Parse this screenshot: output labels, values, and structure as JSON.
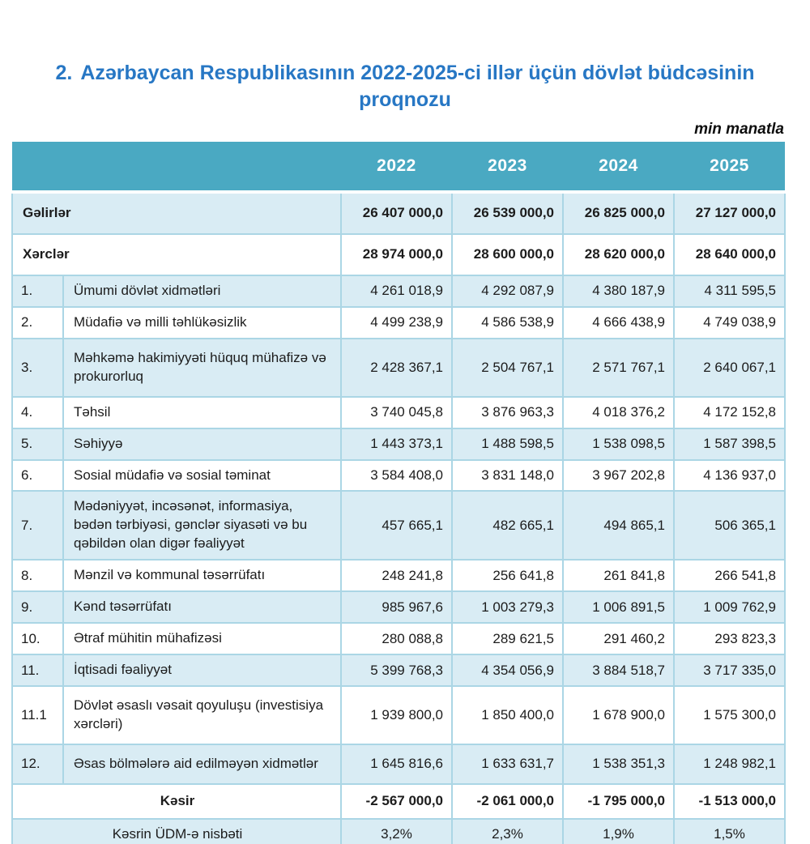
{
  "page": {
    "title_number": "2.",
    "title_text": "Azərbaycan Respublikasının 2022-2025-ci illər üçün dövlət büdcəsinin proqnozu",
    "unit_note": "min manatla"
  },
  "colors": {
    "title_blue": "#2777c4",
    "header_bg": "#4aa9c2",
    "header_text": "#ffffff",
    "shaded_row_bg": "#d9ecf4",
    "cell_border": "#abd6e5",
    "body_text": "#1c1c1c"
  },
  "table": {
    "year_headers": [
      "2022",
      "2023",
      "2024",
      "2025"
    ],
    "rows": [
      {
        "type": "summary",
        "label": "Gəlirlər",
        "values": [
          "26 407 000,0",
          "26 539 000,0",
          "26 825 000,0",
          "27 127 000,0"
        ]
      },
      {
        "type": "summary",
        "label": "Xərclər",
        "values": [
          "28 974 000,0",
          "28 600 000,0",
          "28 620 000,0",
          "28 640 000,0"
        ]
      },
      {
        "type": "item",
        "num": "1.",
        "label": "Ümumi dövlət xidmətləri",
        "values": [
          "4 261 018,9",
          "4 292 087,9",
          "4 380 187,9",
          "4 311 595,5"
        ]
      },
      {
        "type": "item",
        "num": "2.",
        "label": "Müdafiə və milli təhlükəsizlik",
        "values": [
          "4 499 238,9",
          "4 586 538,9",
          "4 666 438,9",
          "4 749 038,9"
        ]
      },
      {
        "type": "item",
        "num": "3.",
        "label": "Məhkəmə hakimiyyəti hüquq mühafizə və prokurorluq",
        "values": [
          "2 428 367,1",
          "2 504 767,1",
          "2 571 767,1",
          "2 640 067,1"
        ]
      },
      {
        "type": "item",
        "num": "4.",
        "label": "Təhsil",
        "values": [
          "3 740 045,8",
          "3 876 963,3",
          "4 018 376,2",
          "4 172 152,8"
        ]
      },
      {
        "type": "item",
        "num": "5.",
        "label": "Səhiyyə",
        "values": [
          "1 443 373,1",
          "1 488 598,5",
          "1 538 098,5",
          "1 587 398,5"
        ]
      },
      {
        "type": "item",
        "num": "6.",
        "label": "Sosial müdafiə və sosial təminat",
        "values": [
          "3 584 408,0",
          "3 831 148,0",
          "3 967 202,8",
          "4 136 937,0"
        ]
      },
      {
        "type": "item",
        "num": "7.",
        "label": "Mədəniyyət, incəsənət, informasiya, bədən tərbiyəsi, gənclər siyasəti və bu qəbildən olan digər fəaliyyət",
        "values": [
          "457 665,1",
          "482 665,1",
          "494 865,1",
          "506 365,1"
        ]
      },
      {
        "type": "item",
        "num": "8.",
        "label": "Mənzil və kommunal təsərrüfatı",
        "values": [
          "248 241,8",
          "256 641,8",
          "261 841,8",
          "266 541,8"
        ]
      },
      {
        "type": "item",
        "num": "9.",
        "label": "Kənd təsərrüfatı",
        "values": [
          "985 967,6",
          "1 003 279,3",
          "1 006 891,5",
          "1 009 762,9"
        ]
      },
      {
        "type": "item",
        "num": "10.",
        "label": "Ətraf mühitin mühafizəsi",
        "values": [
          "280 088,8",
          "289 621,5",
          "291 460,2",
          "293 823,3"
        ]
      },
      {
        "type": "item",
        "num": "11.",
        "label": "İqtisadi fəaliyyət",
        "values": [
          "5 399 768,3",
          "4 354 056,9",
          "3 884 518,7",
          "3 717 335,0"
        ]
      },
      {
        "type": "item",
        "num": "11.1",
        "label": "Dövlət əsaslı vəsait qoyuluşu (investisiya xərcləri)",
        "values": [
          "1 939 800,0",
          "1 850 400,0",
          "1 678 900,0",
          "1 575 300,0"
        ]
      },
      {
        "type": "item",
        "num": "12.",
        "label": "Əsas bölmələrə aid edilməyən xidmətlər",
        "values": [
          "1 645 816,6",
          "1 633 631,7",
          "1 538 351,3",
          "1 248 982,1"
        ]
      },
      {
        "type": "deficit",
        "label": "Kəsir",
        "values": [
          "-2 567 000,0",
          "-2 061 000,0",
          "-1 795 000,0",
          "-1 513 000,0"
        ]
      },
      {
        "type": "ratio",
        "label": "Kəsrin ÜDM-ə nisbəti",
        "values": [
          "3,2%",
          "2,3%",
          "1,9%",
          "1,5%"
        ]
      }
    ]
  }
}
